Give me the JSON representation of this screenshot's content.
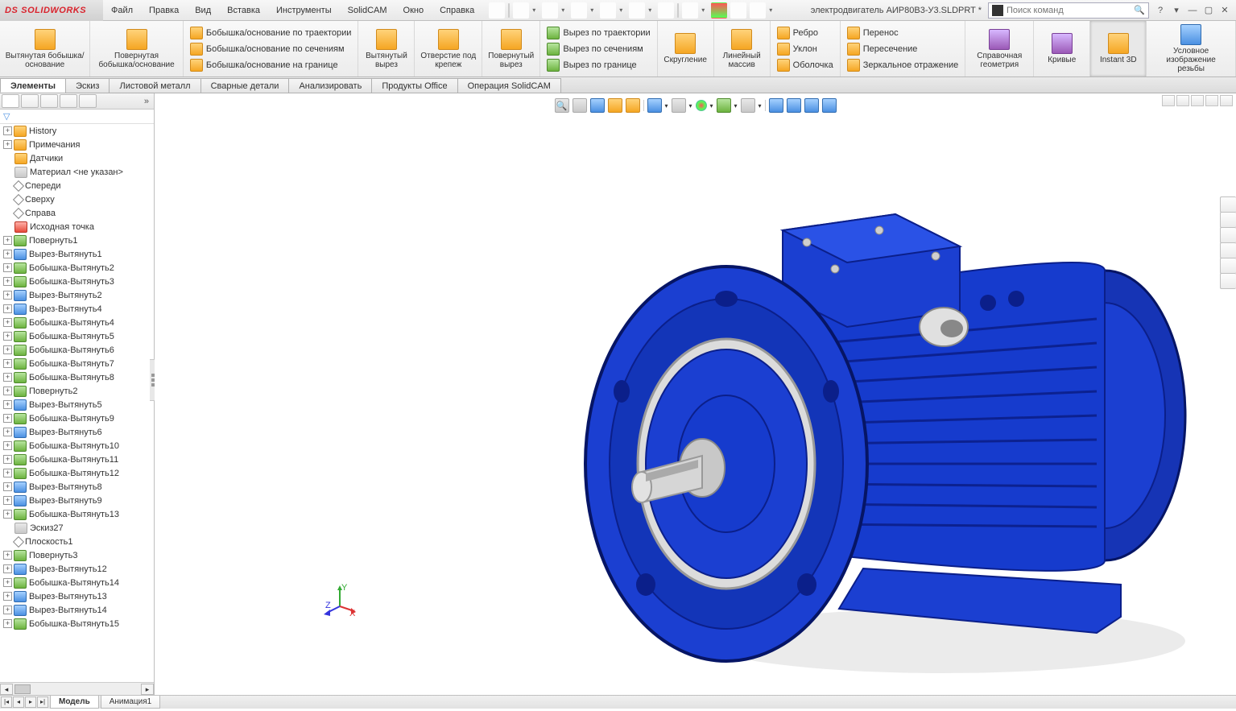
{
  "app": {
    "name": "SOLIDWORKS"
  },
  "menu": [
    "Файл",
    "Правка",
    "Вид",
    "Вставка",
    "Инструменты",
    "SolidCAM",
    "Окно",
    "Справка"
  ],
  "doc": "электродвигатель АИР80В3-У3.SLDPRT *",
  "search_placeholder": "Поиск команд",
  "ribbon": {
    "g1": {
      "label": "Вытянутая бобышка/основание"
    },
    "g2": {
      "label": "Повернутая бобышка/основание"
    },
    "g3": [
      "Бобышка/основание по траектории",
      "Бобышка/основание по сечениям",
      "Бобышка/основание на границе"
    ],
    "g4": {
      "label": "Вытянутый вырез"
    },
    "g5": {
      "label": "Отверстие под крепеж"
    },
    "g6": {
      "label": "Повернутый вырез"
    },
    "g7": [
      "Вырез по траектории",
      "Вырез по сечениям",
      "Вырез по границе"
    ],
    "g8": {
      "label": "Скругление"
    },
    "g9": {
      "label": "Линейный массив"
    },
    "g10": [
      "Ребро",
      "Уклон",
      "Оболочка"
    ],
    "g11": [
      "Перенос",
      "Пересечение",
      "Зеркальное отражение"
    ],
    "g12": {
      "label": "Справочная геометрия"
    },
    "g13": {
      "label": "Кривые"
    },
    "g14": {
      "label": "Instant 3D"
    },
    "g15": {
      "label": "Условное изображение резьбы"
    }
  },
  "tabs": [
    "Элементы",
    "Эскиз",
    "Листовой металл",
    "Сварные детали",
    "Анализировать",
    "Продукты Office",
    "Операция SolidCAM"
  ],
  "active_tab": 0,
  "tree": [
    {
      "i": "orange",
      "t": "History",
      "exp": true
    },
    {
      "i": "orange",
      "t": "Примечания",
      "exp": true
    },
    {
      "i": "orange",
      "t": "Датчики"
    },
    {
      "i": "grey",
      "t": "Материал <не указан>"
    },
    {
      "i": "diamond",
      "t": "Спереди"
    },
    {
      "i": "diamond",
      "t": "Сверху"
    },
    {
      "i": "diamond",
      "t": "Справа"
    },
    {
      "i": "red",
      "t": "Исходная точка"
    },
    {
      "i": "green",
      "t": "Повернуть1",
      "exp": true
    },
    {
      "i": "blue",
      "t": "Вырез-Вытянуть1",
      "exp": true
    },
    {
      "i": "green",
      "t": "Бобышка-Вытянуть2",
      "exp": true
    },
    {
      "i": "green",
      "t": "Бобышка-Вытянуть3",
      "exp": true
    },
    {
      "i": "blue",
      "t": "Вырез-Вытянуть2",
      "exp": true
    },
    {
      "i": "blue",
      "t": "Вырез-Вытянуть4",
      "exp": true
    },
    {
      "i": "green",
      "t": "Бобышка-Вытянуть4",
      "exp": true
    },
    {
      "i": "green",
      "t": "Бобышка-Вытянуть5",
      "exp": true
    },
    {
      "i": "green",
      "t": "Бобышка-Вытянуть6",
      "exp": true
    },
    {
      "i": "green",
      "t": "Бобышка-Вытянуть7",
      "exp": true
    },
    {
      "i": "green",
      "t": "Бобышка-Вытянуть8",
      "exp": true
    },
    {
      "i": "green",
      "t": "Повернуть2",
      "exp": true
    },
    {
      "i": "blue",
      "t": "Вырез-Вытянуть5",
      "exp": true
    },
    {
      "i": "green",
      "t": "Бобышка-Вытянуть9",
      "exp": true
    },
    {
      "i": "blue",
      "t": "Вырез-Вытянуть6",
      "exp": true
    },
    {
      "i": "green",
      "t": "Бобышка-Вытянуть10",
      "exp": true
    },
    {
      "i": "green",
      "t": "Бобышка-Вытянуть11",
      "exp": true
    },
    {
      "i": "green",
      "t": "Бобышка-Вытянуть12",
      "exp": true
    },
    {
      "i": "blue",
      "t": "Вырез-Вытянуть8",
      "exp": true
    },
    {
      "i": "blue",
      "t": "Вырез-Вытянуть9",
      "exp": true
    },
    {
      "i": "green",
      "t": "Бобышка-Вытянуть13",
      "exp": true
    },
    {
      "i": "grey",
      "t": "Эскиз27"
    },
    {
      "i": "diamond",
      "t": "Плоскость1"
    },
    {
      "i": "green",
      "t": "Повернуть3",
      "exp": true
    },
    {
      "i": "blue",
      "t": "Вырез-Вытянуть12",
      "exp": true
    },
    {
      "i": "green",
      "t": "Бобышка-Вытянуть14",
      "exp": true
    },
    {
      "i": "blue",
      "t": "Вырез-Вытянуть13",
      "exp": true
    },
    {
      "i": "blue",
      "t": "Вырез-Вытянуть14",
      "exp": true
    },
    {
      "i": "green",
      "t": "Бобышка-Вытянуть15",
      "exp": true
    }
  ],
  "model_tabs": [
    "Модель",
    "Анимация1"
  ],
  "colors": {
    "motor_body": "#1b3fd1",
    "motor_dark": "#0b1f8a",
    "steel": "#cfcfcf"
  }
}
